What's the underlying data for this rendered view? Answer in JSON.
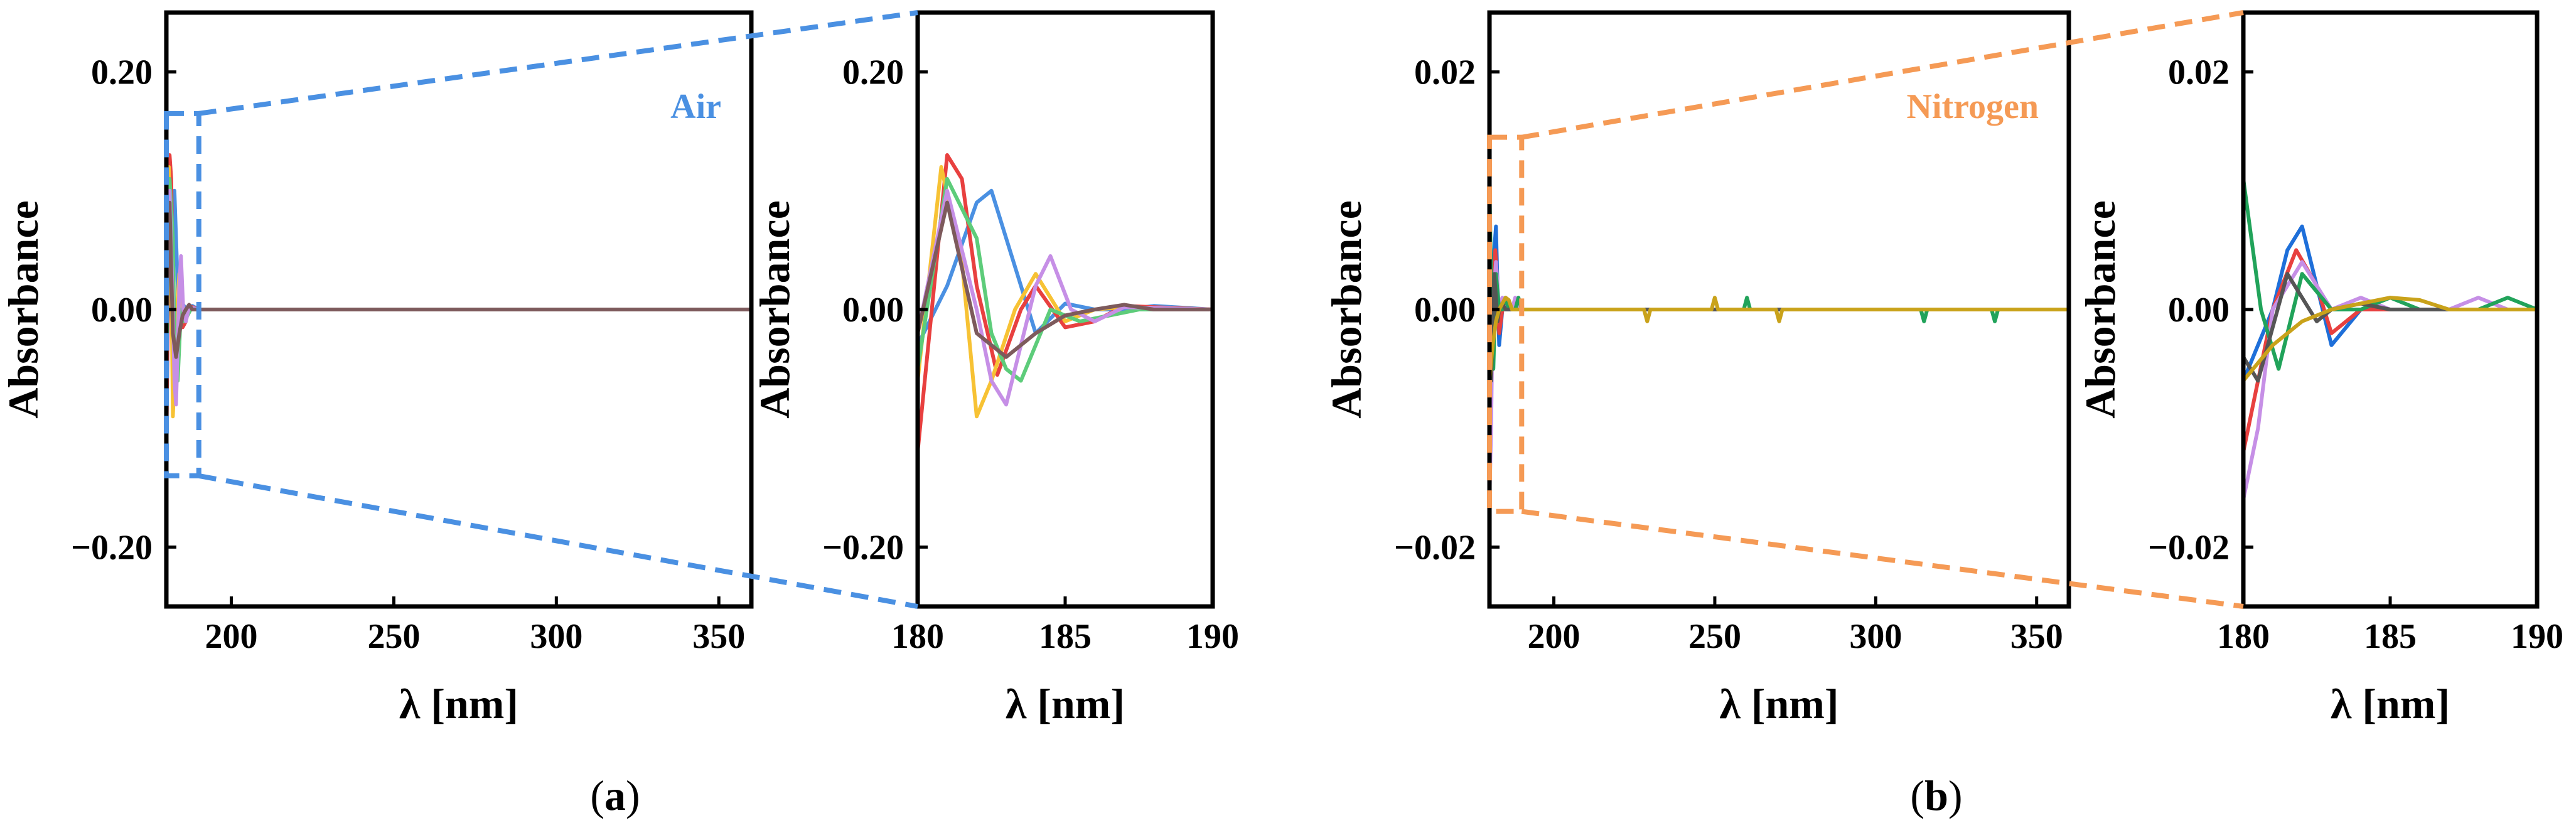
{
  "figure": {
    "caption_a": "a",
    "caption_b": "b"
  },
  "colors": {
    "air_accent": "#4a90e2",
    "nitrogen_accent": "#f59a55"
  },
  "chart_data": [
    {
      "id": "a-main",
      "type": "line",
      "title": "",
      "annotation": "Air",
      "xlabel": "λ [nm]",
      "ylabel": "Absorbance",
      "xlim": [
        180,
        360
      ],
      "ylim": [
        -0.25,
        0.25
      ],
      "xticks": [
        200,
        250,
        300,
        350
      ],
      "xtick_labels": [
        "200",
        "250",
        "300",
        "350"
      ],
      "yticks": [
        0.2,
        0.0,
        -0.2
      ],
      "ytick_labels": [
        "0.20",
        "0.00",
        "−0.20"
      ],
      "zoom_box": {
        "x": [
          180,
          190
        ],
        "y": [
          -0.14,
          0.165
        ]
      },
      "series": [
        {
          "name": "series-1",
          "color": "#4a90e2",
          "x": [
            180,
            181,
            182,
            182.5,
            183,
            184,
            185,
            186,
            187,
            188,
            190,
            360
          ],
          "y": [
            -0.03,
            0.02,
            0.09,
            0.1,
            0.06,
            -0.02,
            0.005,
            0.0,
            0.0,
            0.003,
            0.0,
            0.0
          ]
        },
        {
          "name": "series-2",
          "color": "#e8403f",
          "x": [
            180,
            181,
            181.5,
            182,
            182.7,
            183.5,
            184,
            185,
            186,
            187,
            190,
            360
          ],
          "y": [
            -0.12,
            0.13,
            0.11,
            0.02,
            -0.055,
            0.0,
            0.02,
            -0.015,
            -0.01,
            0.003,
            0.0,
            0.0
          ]
        },
        {
          "name": "series-3",
          "color": "#f7c234",
          "x": [
            180,
            180.8,
            181.5,
            182,
            182.5,
            183.3,
            184,
            185,
            186,
            187,
            190,
            360
          ],
          "y": [
            -0.06,
            0.12,
            0.04,
            -0.09,
            -0.06,
            0.0,
            0.03,
            -0.01,
            0.0,
            0.002,
            0.0,
            0.0
          ]
        },
        {
          "name": "series-4",
          "color": "#5dcc7a",
          "x": [
            180,
            181,
            182,
            182.5,
            183,
            183.5,
            184.5,
            185.5,
            186.5,
            187.5,
            190,
            360
          ],
          "y": [
            -0.05,
            0.11,
            0.06,
            -0.02,
            -0.05,
            -0.06,
            0.0,
            -0.01,
            -0.005,
            0.0,
            0.0,
            0.0
          ]
        },
        {
          "name": "series-5",
          "color": "#c68fe6",
          "x": [
            180,
            181,
            182,
            182.5,
            183,
            184,
            184.5,
            185.2,
            186,
            187,
            190,
            360
          ],
          "y": [
            -0.02,
            0.1,
            0.0,
            -0.06,
            -0.08,
            0.02,
            0.045,
            0.0,
            -0.01,
            0.002,
            0.0,
            0.0
          ]
        },
        {
          "name": "series-6",
          "color": "#7d5a5c",
          "x": [
            180,
            181,
            182,
            183,
            184,
            185,
            186,
            187,
            188,
            190,
            360
          ],
          "y": [
            -0.02,
            0.09,
            -0.02,
            -0.04,
            -0.02,
            -0.005,
            0.0,
            0.004,
            0.0,
            0.0,
            0.0
          ]
        }
      ]
    },
    {
      "id": "a-inset",
      "type": "line",
      "xlabel": "λ [nm]",
      "ylabel": "Absorbance",
      "xlim": [
        180,
        190
      ],
      "ylim": [
        -0.25,
        0.25
      ],
      "xticks": [
        180,
        185,
        190
      ],
      "xtick_labels": [
        "180",
        "185",
        "190"
      ],
      "yticks": [
        0.2,
        0.0,
        -0.2
      ],
      "ytick_labels": [
        "0.20",
        "0.00",
        "−0.20"
      ],
      "series_ref": "a-main"
    },
    {
      "id": "b-main",
      "type": "line",
      "title": "",
      "annotation": "Nitrogen",
      "xlabel": "λ [nm]",
      "ylabel": "Absorbance",
      "xlim": [
        180,
        360
      ],
      "ylim": [
        -0.025,
        0.025
      ],
      "xticks": [
        200,
        250,
        300,
        350
      ],
      "xtick_labels": [
        "200",
        "250",
        "300",
        "350"
      ],
      "yticks": [
        0.02,
        0.0,
        -0.02
      ],
      "ytick_labels": [
        "0.02",
        "0.00",
        "−0.02"
      ],
      "zoom_box": {
        "x": [
          180,
          190
        ],
        "y": [
          -0.017,
          0.0145
        ]
      },
      "series": [
        {
          "name": "series-1",
          "color": "#1e6fd9",
          "x": [
            180,
            181,
            181.5,
            182,
            182.5,
            183,
            184,
            185,
            186,
            188,
            190,
            360
          ],
          "y": [
            -0.006,
            0.0,
            0.005,
            0.007,
            0.002,
            -0.003,
            0.0,
            0.0,
            0.0,
            0.0,
            0.0,
            0.0
          ]
        },
        {
          "name": "series-2",
          "color": "#e8403f",
          "x": [
            180,
            181,
            181.8,
            182.5,
            183,
            184,
            185,
            186,
            190,
            360
          ],
          "y": [
            -0.012,
            0.0,
            0.005,
            0.002,
            -0.002,
            0.0,
            0.0,
            0.0,
            0.0,
            0.0
          ]
        },
        {
          "name": "series-3",
          "color": "#c68fe6",
          "x": [
            180,
            180.5,
            181,
            182,
            183,
            184,
            185,
            186,
            187,
            188,
            189,
            190,
            360
          ],
          "y": [
            -0.016,
            -0.01,
            0.0,
            0.004,
            0.0,
            0.001,
            0.0,
            0.0,
            0.0,
            0.001,
            0.0,
            0.0,
            0.0
          ]
        },
        {
          "name": "series-4",
          "color": "#21a35a",
          "x": [
            180,
            180.6,
            181.2,
            182,
            183,
            184,
            185,
            186,
            187,
            188,
            189,
            190,
            230,
            231,
            232,
            259,
            260,
            261,
            314,
            315,
            316,
            336,
            337,
            338,
            360
          ],
          "y": [
            0.011,
            0.0,
            -0.005,
            0.003,
            0.0,
            0.0,
            0.001,
            0.0,
            0.0,
            0.0,
            0.001,
            0.0,
            0.0,
            0.0,
            0.0,
            0.0,
            0.001,
            0.0,
            0.0,
            -0.001,
            0.0,
            0.0,
            -0.001,
            0.0,
            0.0
          ]
        },
        {
          "name": "series-5",
          "color": "#555555",
          "x": [
            180,
            180.5,
            181.5,
            182,
            182.5,
            183,
            184,
            185,
            186,
            190,
            360
          ],
          "y": [
            -0.004,
            -0.006,
            0.003,
            0.001,
            -0.001,
            0.0,
            0.0005,
            0.0,
            0.0,
            0.0,
            0.0
          ]
        },
        {
          "name": "series-6",
          "color": "#c9a21a",
          "x": [
            180,
            181,
            182,
            183,
            184,
            185,
            186,
            187,
            188,
            190,
            228,
            229,
            230,
            249,
            250,
            251,
            269,
            270,
            271,
            360
          ],
          "y": [
            -0.006,
            -0.003,
            -0.001,
            0.0,
            0.0005,
            0.001,
            0.0008,
            0.0,
            0.0,
            0.0,
            0.0,
            -0.001,
            0.0,
            0.0,
            0.001,
            0.0,
            0.0,
            -0.001,
            0.0,
            0.0
          ]
        }
      ]
    },
    {
      "id": "b-inset",
      "type": "line",
      "xlabel": "λ [nm]",
      "ylabel": "Absorbance",
      "xlim": [
        180,
        190
      ],
      "ylim": [
        -0.025,
        0.025
      ],
      "xticks": [
        180,
        185,
        190
      ],
      "xtick_labels": [
        "180",
        "185",
        "190"
      ],
      "yticks": [
        0.02,
        0.0,
        -0.02
      ],
      "ytick_labels": [
        "0.02",
        "0.00",
        "−0.02"
      ],
      "series_ref": "b-main"
    }
  ]
}
